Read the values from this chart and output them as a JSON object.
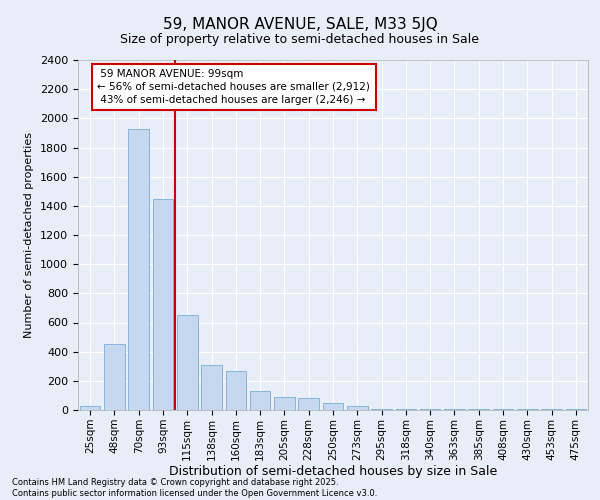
{
  "title": "59, MANOR AVENUE, SALE, M33 5JQ",
  "subtitle": "Size of property relative to semi-detached houses in Sale",
  "xlabel": "Distribution of semi-detached houses by size in Sale",
  "ylabel": "Number of semi-detached properties",
  "property_label": "59 MANOR AVENUE: 99sqm",
  "pct_smaller": 56,
  "pct_smaller_n": "2,912",
  "pct_larger": 43,
  "pct_larger_n": "2,246",
  "bar_color": "#c5d8f0",
  "bar_edge_color": "#7aadd4",
  "vline_color": "#cc0000",
  "annotation_box_color": "#cc0000",
  "background_color": "#e8eef8",
  "grid_color": "#ffffff",
  "footer_line1": "Contains HM Land Registry data © Crown copyright and database right 2025.",
  "footer_line2": "Contains public sector information licensed under the Open Government Licence v3.0.",
  "categories": [
    "25sqm",
    "48sqm",
    "70sqm",
    "93sqm",
    "115sqm",
    "138sqm",
    "160sqm",
    "183sqm",
    "205sqm",
    "228sqm",
    "250sqm",
    "273sqm",
    "295sqm",
    "318sqm",
    "340sqm",
    "363sqm",
    "385sqm",
    "408sqm",
    "430sqm",
    "453sqm",
    "475sqm"
  ],
  "values": [
    30,
    450,
    1930,
    1450,
    650,
    310,
    270,
    130,
    90,
    80,
    50,
    30,
    5,
    5,
    5,
    5,
    5,
    5,
    5,
    5,
    5
  ],
  "vline_x": 3.5,
  "ylim": [
    0,
    2400
  ],
  "yticks": [
    0,
    200,
    400,
    600,
    800,
    1000,
    1200,
    1400,
    1600,
    1800,
    2000,
    2200,
    2400
  ],
  "title_fontsize": 11,
  "subtitle_fontsize": 9,
  "ylabel_fontsize": 8,
  "xlabel_fontsize": 9,
  "tick_fontsize": 8,
  "xtick_fontsize": 7.5,
  "annotation_fontsize": 7.5,
  "footer_fontsize": 6
}
